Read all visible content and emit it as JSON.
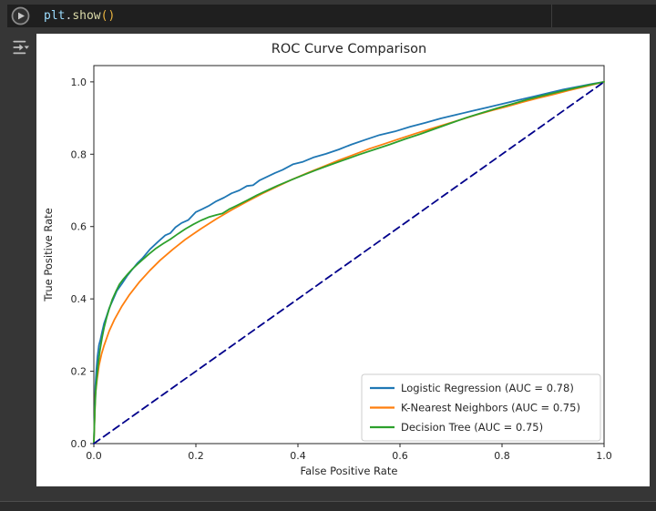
{
  "editor": {
    "code_tokens": [
      {
        "text": "plt",
        "color": "#9cdcfe"
      },
      {
        "text": ".",
        "color": "#d4d4d4"
      },
      {
        "text": "show",
        "color": "#dcdcaa"
      },
      {
        "text": "()",
        "color": "#e8b33f"
      }
    ],
    "run_icon": "play-circle",
    "output_options_icon": "export-output-dropdown"
  },
  "colors": {
    "page_background": "#363636",
    "cell_background": "#1f1f1f",
    "figure_background": "#ffffff",
    "axis_text": "#262626",
    "legend_border": "#cccccc",
    "baseline_navy": "#00008b"
  },
  "chart_data": {
    "type": "line",
    "title": "ROC Curve Comparison",
    "xlabel": "False Positive Rate",
    "ylabel": "True Positive Rate",
    "xlim": [
      0,
      1.0
    ],
    "ylim": [
      0,
      1.045
    ],
    "xticks": [
      0.0,
      0.2,
      0.4,
      0.6,
      0.8,
      1.0
    ],
    "yticks": [
      0.0,
      0.2,
      0.4,
      0.6,
      0.8,
      1.0
    ],
    "grid": false,
    "legend_position": "lower right",
    "series": [
      {
        "name": "Logistic Regression (AUC = 0.78)",
        "color": "#1f77b4",
        "style": "solid",
        "auc": 0.78,
        "points": [
          [
            0,
            0
          ],
          [
            0.002,
            0.105
          ],
          [
            0.003,
            0.16
          ],
          [
            0.005,
            0.205
          ],
          [
            0.007,
            0.238
          ],
          [
            0.01,
            0.272
          ],
          [
            0.013,
            0.288
          ],
          [
            0.016,
            0.308
          ],
          [
            0.02,
            0.332
          ],
          [
            0.025,
            0.352
          ],
          [
            0.03,
            0.374
          ],
          [
            0.037,
            0.396
          ],
          [
            0.045,
            0.422
          ],
          [
            0.055,
            0.442
          ],
          [
            0.065,
            0.463
          ],
          [
            0.075,
            0.481
          ],
          [
            0.085,
            0.498
          ],
          [
            0.095,
            0.512
          ],
          [
            0.11,
            0.537
          ],
          [
            0.125,
            0.557
          ],
          [
            0.14,
            0.576
          ],
          [
            0.15,
            0.582
          ],
          [
            0.16,
            0.598
          ],
          [
            0.172,
            0.61
          ],
          [
            0.185,
            0.618
          ],
          [
            0.2,
            0.64
          ],
          [
            0.212,
            0.648
          ],
          [
            0.225,
            0.657
          ],
          [
            0.24,
            0.67
          ],
          [
            0.255,
            0.68
          ],
          [
            0.27,
            0.692
          ],
          [
            0.285,
            0.7
          ],
          [
            0.3,
            0.712
          ],
          [
            0.312,
            0.714
          ],
          [
            0.325,
            0.728
          ],
          [
            0.34,
            0.738
          ],
          [
            0.355,
            0.748
          ],
          [
            0.37,
            0.757
          ],
          [
            0.39,
            0.772
          ],
          [
            0.41,
            0.779
          ],
          [
            0.43,
            0.791
          ],
          [
            0.455,
            0.801
          ],
          [
            0.48,
            0.813
          ],
          [
            0.505,
            0.827
          ],
          [
            0.53,
            0.839
          ],
          [
            0.56,
            0.853
          ],
          [
            0.59,
            0.863
          ],
          [
            0.62,
            0.876
          ],
          [
            0.65,
            0.887
          ],
          [
            0.68,
            0.899
          ],
          [
            0.71,
            0.909
          ],
          [
            0.74,
            0.919
          ],
          [
            0.77,
            0.929
          ],
          [
            0.8,
            0.939
          ],
          [
            0.83,
            0.949
          ],
          [
            0.86,
            0.959
          ],
          [
            0.89,
            0.969
          ],
          [
            0.92,
            0.979
          ],
          [
            0.95,
            0.987
          ],
          [
            0.975,
            0.994
          ],
          [
            1,
            1
          ]
        ]
      },
      {
        "name": "K-Nearest Neighbors (AUC = 0.75)",
        "color": "#ff7f0e",
        "style": "solid",
        "auc": 0.75,
        "points": [
          [
            0,
            0
          ],
          [
            0.003,
            0.135
          ],
          [
            0.006,
            0.175
          ],
          [
            0.01,
            0.215
          ],
          [
            0.015,
            0.247
          ],
          [
            0.02,
            0.271
          ],
          [
            0.03,
            0.311
          ],
          [
            0.04,
            0.342
          ],
          [
            0.055,
            0.38
          ],
          [
            0.07,
            0.412
          ],
          [
            0.09,
            0.448
          ],
          [
            0.11,
            0.479
          ],
          [
            0.13,
            0.507
          ],
          [
            0.155,
            0.537
          ],
          [
            0.18,
            0.565
          ],
          [
            0.21,
            0.594
          ],
          [
            0.24,
            0.621
          ],
          [
            0.27,
            0.646
          ],
          [
            0.3,
            0.669
          ],
          [
            0.33,
            0.691
          ],
          [
            0.36,
            0.711
          ],
          [
            0.39,
            0.731
          ],
          [
            0.42,
            0.749
          ],
          [
            0.45,
            0.766
          ],
          [
            0.48,
            0.783
          ],
          [
            0.51,
            0.799
          ],
          [
            0.54,
            0.815
          ],
          [
            0.57,
            0.829
          ],
          [
            0.6,
            0.843
          ],
          [
            0.63,
            0.857
          ],
          [
            0.66,
            0.87
          ],
          [
            0.69,
            0.883
          ],
          [
            0.72,
            0.896
          ],
          [
            0.75,
            0.909
          ],
          [
            0.78,
            0.921
          ],
          [
            0.81,
            0.932
          ],
          [
            0.84,
            0.944
          ],
          [
            0.87,
            0.955
          ],
          [
            0.9,
            0.965
          ],
          [
            0.93,
            0.976
          ],
          [
            0.96,
            0.986
          ],
          [
            1,
            1
          ]
        ]
      },
      {
        "name": "Decision Tree (AUC = 0.75)",
        "color": "#2ca02c",
        "style": "solid",
        "auc": 0.75,
        "points": [
          [
            0,
            0
          ],
          [
            0.002,
            0.095
          ],
          [
            0.004,
            0.15
          ],
          [
            0.006,
            0.185
          ],
          [
            0.009,
            0.225
          ],
          [
            0.012,
            0.258
          ],
          [
            0.016,
            0.292
          ],
          [
            0.02,
            0.32
          ],
          [
            0.025,
            0.348
          ],
          [
            0.03,
            0.372
          ],
          [
            0.036,
            0.398
          ],
          [
            0.043,
            0.42
          ],
          [
            0.05,
            0.44
          ],
          [
            0.058,
            0.455
          ],
          [
            0.066,
            0.468
          ],
          [
            0.075,
            0.482
          ],
          [
            0.085,
            0.495
          ],
          [
            0.095,
            0.508
          ],
          [
            0.108,
            0.524
          ],
          [
            0.122,
            0.54
          ],
          [
            0.136,
            0.553
          ],
          [
            0.15,
            0.565
          ],
          [
            0.165,
            0.58
          ],
          [
            0.18,
            0.594
          ],
          [
            0.195,
            0.606
          ],
          [
            0.21,
            0.617
          ],
          [
            0.225,
            0.626
          ],
          [
            0.24,
            0.632
          ],
          [
            0.252,
            0.636
          ],
          [
            0.265,
            0.648
          ],
          [
            0.28,
            0.658
          ],
          [
            0.3,
            0.672
          ],
          [
            0.32,
            0.687
          ],
          [
            0.34,
            0.7
          ],
          [
            0.36,
            0.713
          ],
          [
            0.385,
            0.728
          ],
          [
            0.41,
            0.742
          ],
          [
            0.435,
            0.756
          ],
          [
            0.46,
            0.769
          ],
          [
            0.49,
            0.784
          ],
          [
            0.52,
            0.799
          ],
          [
            0.55,
            0.813
          ],
          [
            0.58,
            0.827
          ],
          [
            0.61,
            0.842
          ],
          [
            0.64,
            0.856
          ],
          [
            0.67,
            0.871
          ],
          [
            0.7,
            0.886
          ],
          [
            0.73,
            0.901
          ],
          [
            0.76,
            0.914
          ],
          [
            0.79,
            0.927
          ],
          [
            0.82,
            0.939
          ],
          [
            0.85,
            0.951
          ],
          [
            0.88,
            0.962
          ],
          [
            0.91,
            0.972
          ],
          [
            0.94,
            0.982
          ],
          [
            0.97,
            0.991
          ],
          [
            1,
            1
          ]
        ]
      },
      {
        "name": "chance-baseline",
        "color": "#00008b",
        "style": "dashed",
        "legend": false,
        "points": [
          [
            0,
            0
          ],
          [
            1,
            1
          ]
        ]
      }
    ]
  }
}
